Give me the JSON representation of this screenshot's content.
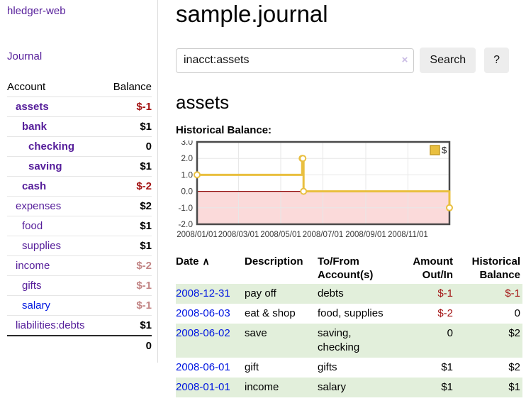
{
  "brand": "hledger-web",
  "colors": {
    "link_purple": "#551d9a",
    "link_blue": "#0016e0",
    "negative_strong": "#a31414",
    "negative_muted": "#c28585",
    "row_stripe_green": "#e2efdb",
    "button_gray": "#ededed"
  },
  "sidebar": {
    "journal_label": "Journal",
    "accounts": {
      "headers": {
        "account": "Account",
        "balance": "Balance"
      },
      "rows": [
        {
          "name": "assets",
          "balance": "$-1",
          "depth": 1,
          "bold": true,
          "link_class": "purple",
          "balance_class": "neg-strong"
        },
        {
          "name": "bank",
          "balance": "$1",
          "depth": 2,
          "bold": true,
          "link_class": "purple",
          "balance_class": ""
        },
        {
          "name": "checking",
          "balance": "0",
          "depth": 3,
          "bold": true,
          "link_class": "purple",
          "balance_class": ""
        },
        {
          "name": "saving",
          "balance": "$1",
          "depth": 3,
          "bold": true,
          "link_class": "purple",
          "balance_class": ""
        },
        {
          "name": "cash",
          "balance": "$-2",
          "depth": 2,
          "bold": true,
          "link_class": "purple",
          "balance_class": "neg-strong"
        },
        {
          "name": "expenses",
          "balance": "$2",
          "depth": 1,
          "bold": false,
          "link_class": "purple",
          "balance_class": ""
        },
        {
          "name": "food",
          "balance": "$1",
          "depth": 2,
          "bold": false,
          "link_class": "purple",
          "balance_class": ""
        },
        {
          "name": "supplies",
          "balance": "$1",
          "depth": 2,
          "bold": false,
          "link_class": "purple",
          "balance_class": ""
        },
        {
          "name": "income",
          "balance": "$-2",
          "depth": 1,
          "bold": false,
          "link_class": "purple",
          "balance_class": "neg-muted"
        },
        {
          "name": "gifts",
          "balance": "$-1",
          "depth": 2,
          "bold": false,
          "link_class": "purple",
          "balance_class": "neg-muted"
        },
        {
          "name": "salary",
          "balance": "$-1",
          "depth": 2,
          "bold": false,
          "link_class": "blue",
          "balance_class": "neg-muted"
        },
        {
          "name": "liabilities:debts",
          "balance": "$1",
          "depth": 1,
          "bold": false,
          "link_class": "purple",
          "balance_class": ""
        }
      ],
      "total": "0"
    }
  },
  "header": {
    "title": "sample.journal"
  },
  "search": {
    "value": "inacct:assets",
    "clear_icon": "×",
    "search_button": "Search",
    "help_button": "?"
  },
  "account_view": {
    "heading": "assets",
    "chart_title": "Historical Balance:"
  },
  "chart_data": {
    "type": "line",
    "step": true,
    "title": "Historical Balance",
    "series": [
      {
        "name": "$",
        "color": "#e9bf3f",
        "marker_fill": "#ffffff",
        "points": [
          [
            "2008-01-01",
            1
          ],
          [
            "2008-06-01",
            2
          ],
          [
            "2008-06-02",
            2
          ],
          [
            "2008-06-03",
            0
          ],
          [
            "2008-12-31",
            -1
          ]
        ]
      }
    ],
    "ylim": [
      -2,
      3
    ],
    "x_range_days": 365,
    "y_ticks": [
      {
        "label": "3.0",
        "v": 3
      },
      {
        "label": "2.0",
        "v": 2
      },
      {
        "label": "1.0",
        "v": 1
      },
      {
        "label": "0.0",
        "v": 0
      },
      {
        "label": "-1.0",
        "v": -1
      },
      {
        "label": "-2.0",
        "v": -2
      }
    ],
    "x_ticks": [
      {
        "label": "2008/01/01"
      },
      {
        "label": "2008/03/01"
      },
      {
        "label": "2008/05/01"
      },
      {
        "label": "2008/07/01"
      },
      {
        "label": "2008/09/01"
      },
      {
        "label": "2008/11/01"
      }
    ],
    "grid": true,
    "legend": {
      "label": "$",
      "position": "top-right"
    },
    "negative_fill": "#fbdada",
    "zero_line_color": "#8b0000",
    "border_color": "#4a4a4a"
  },
  "register": {
    "sort_icon": "∧",
    "headers": [
      "Date",
      "Description",
      "To/From Account(s)",
      "Amount Out/In",
      "Historical Balance"
    ],
    "rows": [
      {
        "date": "2008-12-31",
        "description": "pay off",
        "accounts": "debts",
        "amount": "$-1",
        "amount_class": "neg-strong",
        "balance": "$-1",
        "balance_class": "neg-strong"
      },
      {
        "date": "2008-06-03",
        "description": "eat & shop",
        "accounts": "food, supplies",
        "amount": "$-2",
        "amount_class": "neg-strong",
        "balance": "0",
        "balance_class": ""
      },
      {
        "date": "2008-06-02",
        "description": "save",
        "accounts": "saving, checking",
        "amount": "0",
        "amount_class": "",
        "balance": "$2",
        "balance_class": ""
      },
      {
        "date": "2008-06-01",
        "description": "gift",
        "accounts": "gifts",
        "amount": "$1",
        "amount_class": "",
        "balance": "$2",
        "balance_class": ""
      },
      {
        "date": "2008-01-01",
        "description": "income",
        "accounts": "salary",
        "amount": "$1",
        "amount_class": "",
        "balance": "$1",
        "balance_class": ""
      }
    ]
  }
}
